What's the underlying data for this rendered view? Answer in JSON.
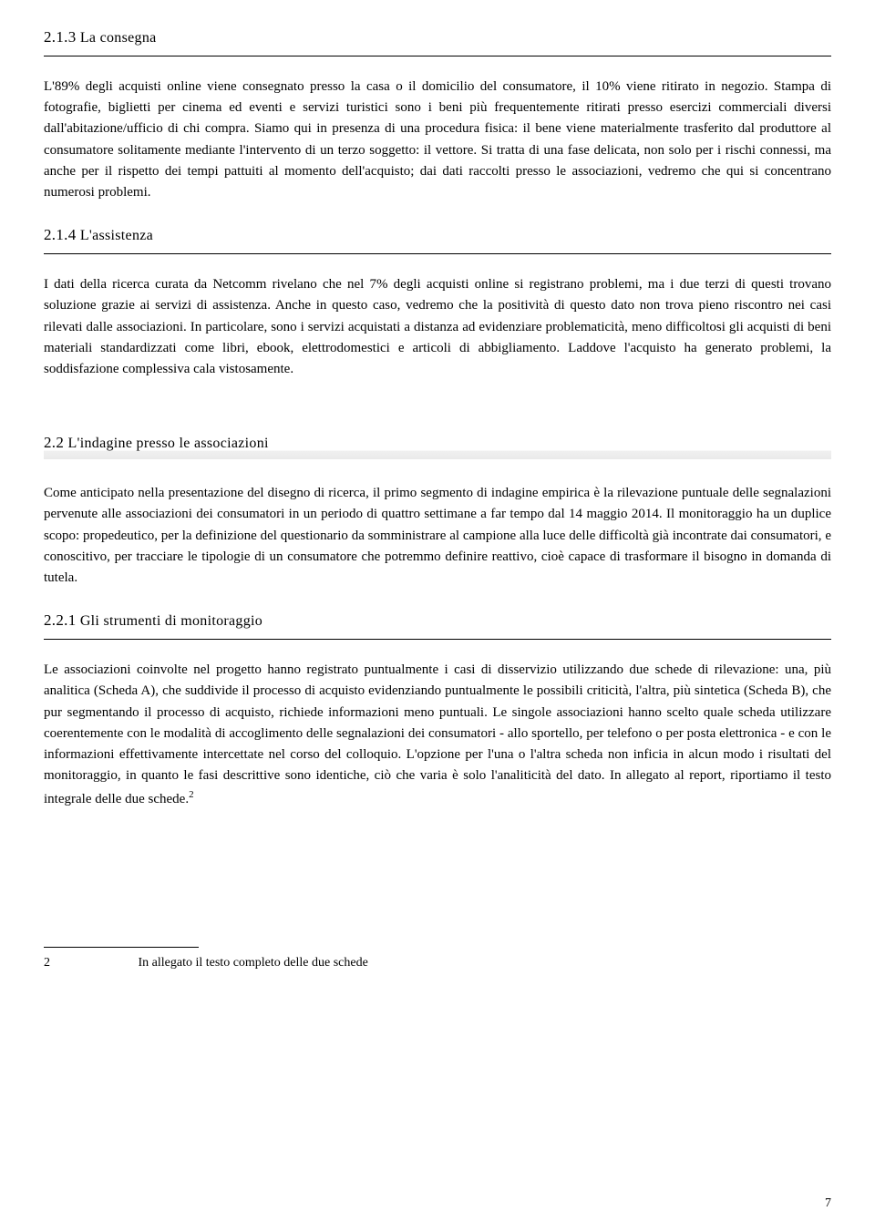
{
  "section_213": {
    "number": "2.1.3",
    "title": "La consegna",
    "body": "L'89% degli acquisti online viene consegnato presso la casa o il domicilio del consumatore, il 10% viene ritirato in negozio. Stampa di fotografie, biglietti per cinema ed eventi e servizi turistici sono i beni più frequentemente ritirati presso esercizi commerciali diversi dall'abitazione/ufficio di chi compra. Siamo qui in presenza di una procedura fisica: il bene viene materialmente trasferito dal produttore al consumatore solitamente mediante l'intervento di un terzo soggetto: il vettore. Si tratta di una fase delicata, non solo per i rischi connessi, ma anche per il rispetto dei tempi pattuiti al momento dell'acquisto; dai dati raccolti presso le associazioni, vedremo che qui si concentrano numerosi problemi."
  },
  "section_214": {
    "number": "2.1.4",
    "title": "L'assistenza",
    "body": " I dati della ricerca curata da Netcomm rivelano che nel 7% degli acquisti online si registrano problemi, ma i due terzi di questi trovano soluzione grazie ai servizi di assistenza. Anche in questo caso, vedremo che la positività di questo dato non trova pieno riscontro nei casi rilevati dalle associazioni. In particolare, sono i servizi acquistati a distanza ad evidenziare problematicità,  meno difficoltosi gli acquisti di beni materiali standardizzati come libri, ebook, elettrodomestici e articoli di abbigliamento. Laddove l'acquisto ha generato problemi, la soddisfazione complessiva cala vistosamente."
  },
  "section_22": {
    "number": "2.2",
    "title": "L'indagine presso le associazioni",
    "body": "Come anticipato nella presentazione del disegno di ricerca, il primo segmento di indagine empirica è  la rilevazione puntuale delle segnalazioni pervenute alle associazioni  dei consumatori in un periodo di quattro settimane a far tempo dal 14 maggio 2014. Il monitoraggio ha un duplice scopo: propedeutico, per la definizione del questionario da somministrare al campione alla luce delle difficoltà già incontrate dai consumatori, e conoscitivo, per tracciare le tipologie di un consumatore che potremmo definire reattivo, cioè capace di trasformare il bisogno in domanda di tutela."
  },
  "section_221": {
    "number": "2.2.1",
    "title": "Gli strumenti di monitoraggio",
    "body_html": "Le associazioni coinvolte nel progetto hanno registrato puntualmente i casi di disservizio utilizzando due schede di rilevazione: una, più analitica (Scheda A), che suddivide il processo di acquisto evidenziando puntualmente le possibili criticità, l'altra, più sintetica (Scheda B), che pur segmentando  il processo di acquisto, richiede informazioni meno puntuali. Le singole associazioni hanno scelto quale scheda utilizzare coerentemente con le modalità di accoglimento delle segnalazioni dei consumatori - allo sportello, per telefono o per posta elettronica -  e con le informazioni effettivamente intercettate nel corso del colloquio. L'opzione per l'una o l'altra scheda non inficia in alcun modo i risultati del monitoraggio, in quanto le fasi descrittive sono identiche, ciò che varia è solo l'analiticità  del dato. In allegato al report, riportiamo il testo integrale delle due schede.<sup>2</sup>"
  },
  "footnote": {
    "number": "2",
    "text": "In allegato il testo completo delle  due schede"
  },
  "page_number": "7"
}
